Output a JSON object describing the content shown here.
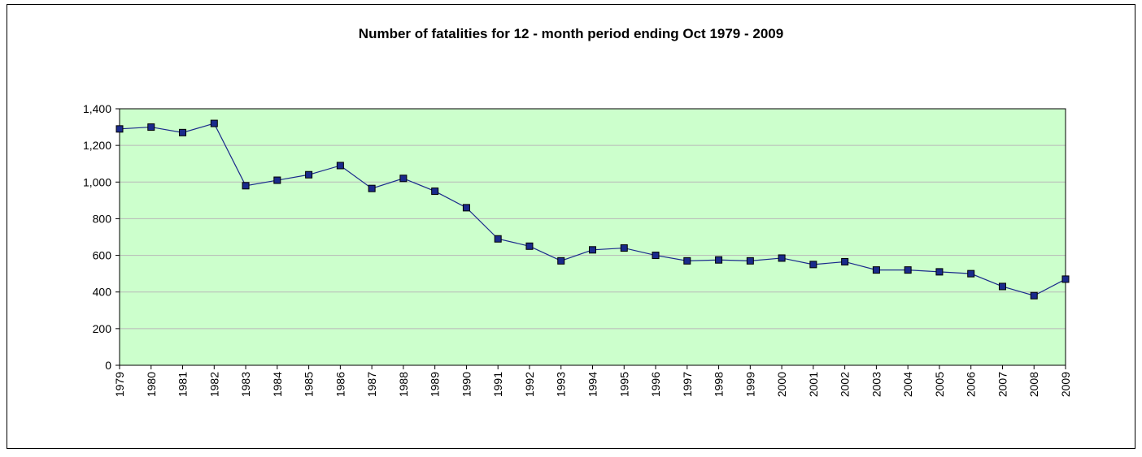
{
  "chart_data": {
    "type": "line",
    "title": "Number of fatalities for 12 - month period ending Oct 1979 - 2009",
    "categories": [
      "1979",
      "1980",
      "1981",
      "1982",
      "1983",
      "1984",
      "1985",
      "1986",
      "1987",
      "1988",
      "1989",
      "1990",
      "1991",
      "1992",
      "1993",
      "1994",
      "1995",
      "1996",
      "1997",
      "1998",
      "1999",
      "2000",
      "2001",
      "2002",
      "2003",
      "2004",
      "2005",
      "2006",
      "2007",
      "2008",
      "2009"
    ],
    "series": [
      {
        "name": "Fatalities",
        "color": "#1a2a8c",
        "values": [
          1290,
          1300,
          1270,
          1320,
          980,
          1010,
          1040,
          1090,
          965,
          1020,
          950,
          860,
          690,
          650,
          570,
          630,
          640,
          600,
          570,
          575,
          570,
          585,
          550,
          565,
          520,
          520,
          510,
          500,
          430,
          380,
          470
        ]
      }
    ],
    "ylim": [
      0,
      1400
    ],
    "yticks": [
      0,
      200,
      400,
      600,
      800,
      {
        "value": 1000,
        "label": "1,000"
      },
      {
        "value": 1200,
        "label": "1,200"
      },
      {
        "value": 1400,
        "label": "1,400"
      }
    ],
    "grid": true
  }
}
